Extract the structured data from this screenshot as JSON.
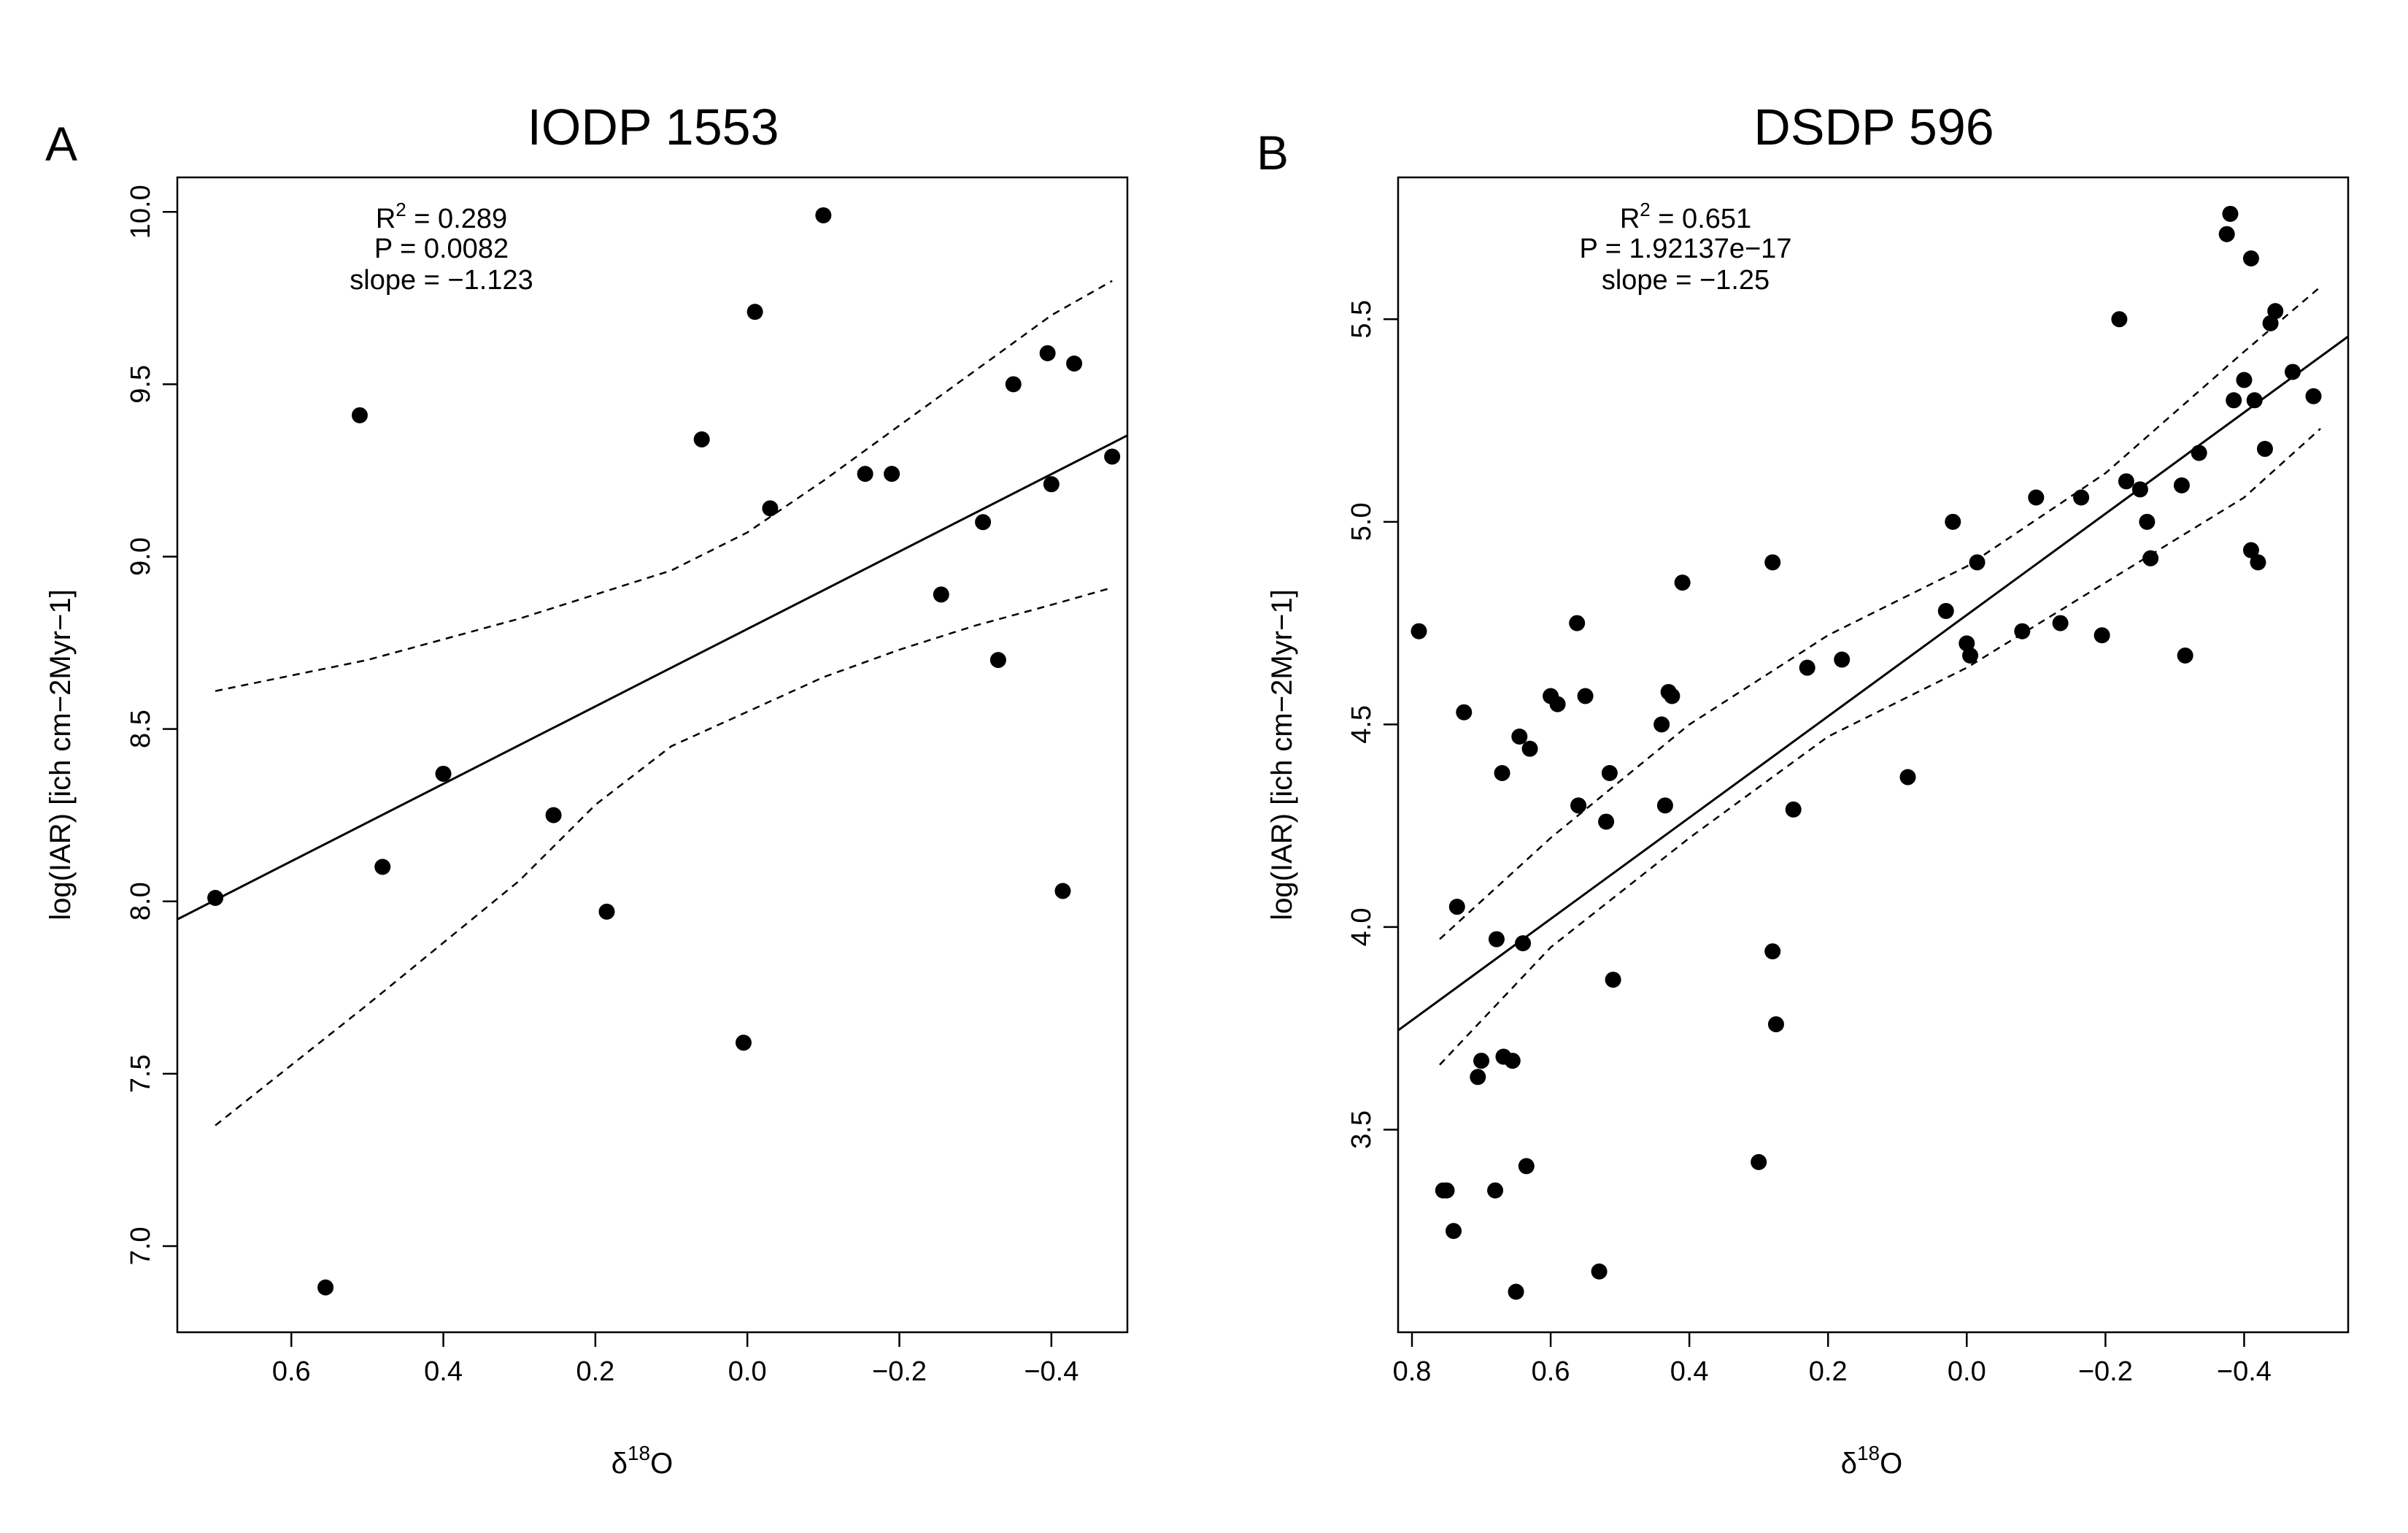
{
  "chart_data": [
    {
      "type": "scatter",
      "panel": "A",
      "title": "IODP 1553",
      "xlabel": "δ",
      "xlabel_sup": "18",
      "xlabel_tail": "O",
      "ylabel": "log(IAR) [ich cm−2Myr−1]",
      "xlim": [
        0.75,
        -0.5
      ],
      "ylim": [
        6.75,
        10.1
      ],
      "x_reversed": true,
      "xticks": [
        0.6,
        0.4,
        0.2,
        0.0,
        -0.2,
        -0.4
      ],
      "xtick_labels": [
        "0.6",
        "0.4",
        "0.2",
        "0.0",
        "−0.2",
        "−0.4"
      ],
      "yticks": [
        7.0,
        7.5,
        8.0,
        8.5,
        9.0,
        9.5,
        10.0
      ],
      "ytick_labels": [
        "7.0",
        "7.5",
        "8.0",
        "8.5",
        "9.0",
        "9.5",
        "10.0"
      ],
      "stats": {
        "r2_label": "R",
        "r2_sup": "2",
        "r2_value": " = 0.289",
        "p": "P = 0.0082",
        "slope": "slope = −1.123"
      },
      "fit_line": {
        "intercept": 8.79,
        "slope": -1.123
      },
      "ci_upper": [
        [
          0.7,
          8.61
        ],
        [
          0.5,
          8.7
        ],
        [
          0.3,
          8.82
        ],
        [
          0.1,
          8.96
        ],
        [
          0.0,
          9.07
        ],
        [
          -0.1,
          9.22
        ],
        [
          -0.2,
          9.38
        ],
        [
          -0.3,
          9.54
        ],
        [
          -0.4,
          9.7
        ],
        [
          -0.48,
          9.8
        ]
      ],
      "ci_lower": [
        [
          0.7,
          7.35
        ],
        [
          0.5,
          7.7
        ],
        [
          0.3,
          8.06
        ],
        [
          0.2,
          8.28
        ],
        [
          0.1,
          8.45
        ],
        [
          0.0,
          8.55
        ],
        [
          -0.1,
          8.65
        ],
        [
          -0.2,
          8.73
        ],
        [
          -0.3,
          8.8
        ],
        [
          -0.4,
          8.86
        ],
        [
          -0.48,
          8.91
        ]
      ],
      "points": [
        [
          0.7,
          8.01
        ],
        [
          0.555,
          6.88
        ],
        [
          0.51,
          9.41
        ],
        [
          0.48,
          8.1
        ],
        [
          0.4,
          8.37
        ],
        [
          0.255,
          8.25
        ],
        [
          0.185,
          7.97
        ],
        [
          0.06,
          9.34
        ],
        [
          0.005,
          7.59
        ],
        [
          -0.01,
          9.71
        ],
        [
          -0.03,
          9.14
        ],
        [
          -0.1,
          9.99
        ],
        [
          -0.155,
          9.24
        ],
        [
          -0.19,
          9.24
        ],
        [
          -0.255,
          8.89
        ],
        [
          -0.31,
          9.1
        ],
        [
          -0.33,
          8.7
        ],
        [
          -0.35,
          9.5
        ],
        [
          -0.395,
          9.59
        ],
        [
          -0.4,
          9.21
        ],
        [
          -0.415,
          8.03
        ],
        [
          -0.43,
          9.56
        ],
        [
          -0.48,
          9.29
        ]
      ]
    },
    {
      "type": "scatter",
      "panel": "B",
      "title": "DSDP 596",
      "xlabel": "δ",
      "xlabel_sup": "18",
      "xlabel_tail": "O",
      "ylabel": "log(IAR) [ich cm−2Myr−1]",
      "xlim": [
        0.82,
        -0.55
      ],
      "ylim": [
        3.0,
        5.85
      ],
      "x_reversed": true,
      "xticks": [
        0.8,
        0.6,
        0.4,
        0.2,
        0.0,
        -0.2,
        -0.4
      ],
      "xtick_labels": [
        "0.8",
        "0.6",
        "0.4",
        "0.2",
        "0.0",
        "−0.2",
        "−0.4"
      ],
      "yticks": [
        3.5,
        4.0,
        4.5,
        5.0,
        5.5
      ],
      "ytick_labels": [
        "3.5",
        "4.0",
        "4.5",
        "5.0",
        "5.5"
      ],
      "stats": {
        "r2_label": "R",
        "r2_sup": "2",
        "r2_value": " = 0.651",
        "p": "P = 1.92137e−17",
        "slope": "slope = −1.25"
      },
      "fit_line": {
        "intercept": 4.77,
        "slope": -1.25
      },
      "ci_upper": [
        [
          0.76,
          3.97
        ],
        [
          0.6,
          4.22
        ],
        [
          0.4,
          4.5
        ],
        [
          0.2,
          4.72
        ],
        [
          0.0,
          4.89
        ],
        [
          -0.2,
          5.12
        ],
        [
          -0.4,
          5.42
        ],
        [
          -0.51,
          5.58
        ]
      ],
      "ci_lower": [
        [
          0.76,
          3.66
        ],
        [
          0.6,
          3.95
        ],
        [
          0.4,
          4.22
        ],
        [
          0.2,
          4.47
        ],
        [
          0.0,
          4.64
        ],
        [
          -0.2,
          4.85
        ],
        [
          -0.4,
          5.06
        ],
        [
          -0.51,
          5.23
        ]
      ],
      "points": [
        [
          0.79,
          4.73
        ],
        [
          0.755,
          3.35
        ],
        [
          0.75,
          3.35
        ],
        [
          0.74,
          3.25
        ],
        [
          0.735,
          4.05
        ],
        [
          0.725,
          4.53
        ],
        [
          0.705,
          3.63
        ],
        [
          0.7,
          3.67
        ],
        [
          0.68,
          3.35
        ],
        [
          0.678,
          3.97
        ],
        [
          0.67,
          4.38
        ],
        [
          0.668,
          3.68
        ],
        [
          0.655,
          3.67
        ],
        [
          0.65,
          3.1
        ],
        [
          0.645,
          4.47
        ],
        [
          0.64,
          3.96
        ],
        [
          0.635,
          3.41
        ],
        [
          0.63,
          4.44
        ],
        [
          0.6,
          4.57
        ],
        [
          0.59,
          4.55
        ],
        [
          0.562,
          4.75
        ],
        [
          0.56,
          4.3
        ],
        [
          0.55,
          4.57
        ],
        [
          0.53,
          3.15
        ],
        [
          0.52,
          4.26
        ],
        [
          0.515,
          4.38
        ],
        [
          0.51,
          3.87
        ],
        [
          0.44,
          4.5
        ],
        [
          0.435,
          4.3
        ],
        [
          0.43,
          4.58
        ],
        [
          0.425,
          4.57
        ],
        [
          0.41,
          4.85
        ],
        [
          0.28,
          4.9
        ],
        [
          0.28,
          3.94
        ],
        [
          0.275,
          3.76
        ],
        [
          0.3,
          3.42
        ],
        [
          0.25,
          4.29
        ],
        [
          0.23,
          4.64
        ],
        [
          0.18,
          4.66
        ],
        [
          0.085,
          4.37
        ],
        [
          0.03,
          4.78
        ],
        [
          0.02,
          5.0
        ],
        [
          0.0,
          4.7
        ],
        [
          -0.005,
          4.67
        ],
        [
          -0.015,
          4.9
        ],
        [
          -0.1,
          5.06
        ],
        [
          -0.08,
          4.73
        ],
        [
          -0.135,
          4.75
        ],
        [
          -0.165,
          5.06
        ],
        [
          -0.195,
          4.72
        ],
        [
          -0.22,
          5.5
        ],
        [
          -0.23,
          5.1
        ],
        [
          -0.25,
          5.08
        ],
        [
          -0.26,
          5.0
        ],
        [
          -0.265,
          4.91
        ],
        [
          -0.31,
          5.09
        ],
        [
          -0.315,
          4.67
        ],
        [
          -0.335,
          5.17
        ],
        [
          -0.375,
          5.71
        ],
        [
          -0.38,
          5.76
        ],
        [
          -0.385,
          5.3
        ],
        [
          -0.4,
          5.35
        ],
        [
          -0.41,
          5.65
        ],
        [
          -0.41,
          4.93
        ],
        [
          -0.415,
          5.3
        ],
        [
          -0.42,
          4.9
        ],
        [
          -0.43,
          5.18
        ],
        [
          -0.438,
          5.49
        ],
        [
          -0.445,
          5.52
        ],
        [
          -0.47,
          5.37
        ],
        [
          -0.5,
          5.31
        ]
      ]
    }
  ]
}
